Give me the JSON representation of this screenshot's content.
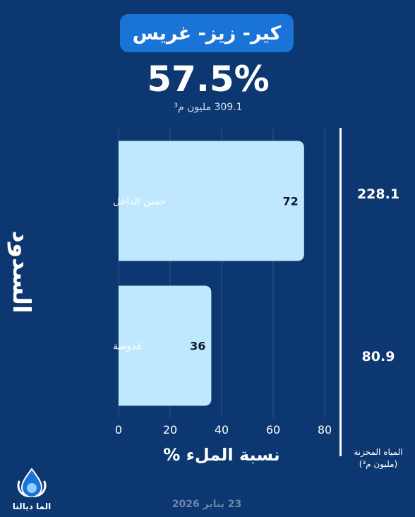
{
  "header": {
    "title": "كير- زيز- غريس",
    "fill_percent": "57.5%",
    "capacity": "309.1 مليون م³"
  },
  "axis_side_title": "السدود",
  "stored_water": {
    "label": "المياه المخزنة (مليون م³)",
    "values": [
      "228.1",
      "80.9"
    ]
  },
  "footer": {
    "date": "23 يناير 2026",
    "logo_text": "الما ديالنا"
  },
  "chart_data": {
    "type": "bar",
    "orientation": "horizontal",
    "categories": [
      "حسن الداخل",
      "قدوسة"
    ],
    "values": [
      72,
      36
    ],
    "xlabel": "نسبة الملء %",
    "xlim": [
      0,
      80
    ],
    "xticks": [
      0,
      20,
      40,
      60,
      80
    ],
    "bar_color": "#bfe8ff",
    "grid": true
  }
}
